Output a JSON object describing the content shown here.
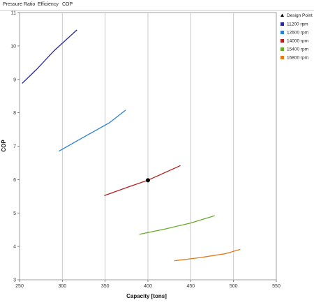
{
  "tabs": [
    "Pressure Ratio",
    "Efficiency",
    "COP"
  ],
  "chart_data": {
    "type": "line",
    "xlabel": "Capacity  [tons]",
    "ylabel": "COP",
    "xlim": [
      250,
      550
    ],
    "ylim": [
      3,
      11
    ],
    "xticks": [
      250,
      300,
      350,
      400,
      450,
      500,
      550
    ],
    "yticks": [
      3,
      4,
      5,
      6,
      7,
      8,
      9,
      10,
      11
    ],
    "grid": "vertical",
    "legend_position": "right",
    "series": [
      {
        "name": "11200 rpm",
        "color": "#2a2a9e",
        "x": [
          253,
          270,
          290,
          317
        ],
        "y": [
          8.88,
          9.3,
          9.85,
          10.48
        ]
      },
      {
        "name": "12600 rpm",
        "color": "#2e7fd0",
        "x": [
          296,
          320,
          355,
          374
        ],
        "y": [
          6.85,
          7.2,
          7.7,
          8.08
        ]
      },
      {
        "name": "14000 rpm",
        "color": "#b22222",
        "x": [
          349,
          375,
          400,
          438
        ],
        "y": [
          5.52,
          5.76,
          5.98,
          6.42
        ]
      },
      {
        "name": "15400 rpm",
        "color": "#6aaa2a",
        "x": [
          390,
          420,
          450,
          478
        ],
        "y": [
          4.36,
          4.52,
          4.7,
          4.92
        ]
      },
      {
        "name": "16800 rpm",
        "color": "#e07b1a",
        "x": [
          431,
          460,
          490,
          508
        ],
        "y": [
          3.57,
          3.66,
          3.78,
          3.91
        ]
      }
    ],
    "design_point": {
      "name": "Design Point",
      "x": 400,
      "y": 5.98,
      "color": "#000000"
    }
  }
}
